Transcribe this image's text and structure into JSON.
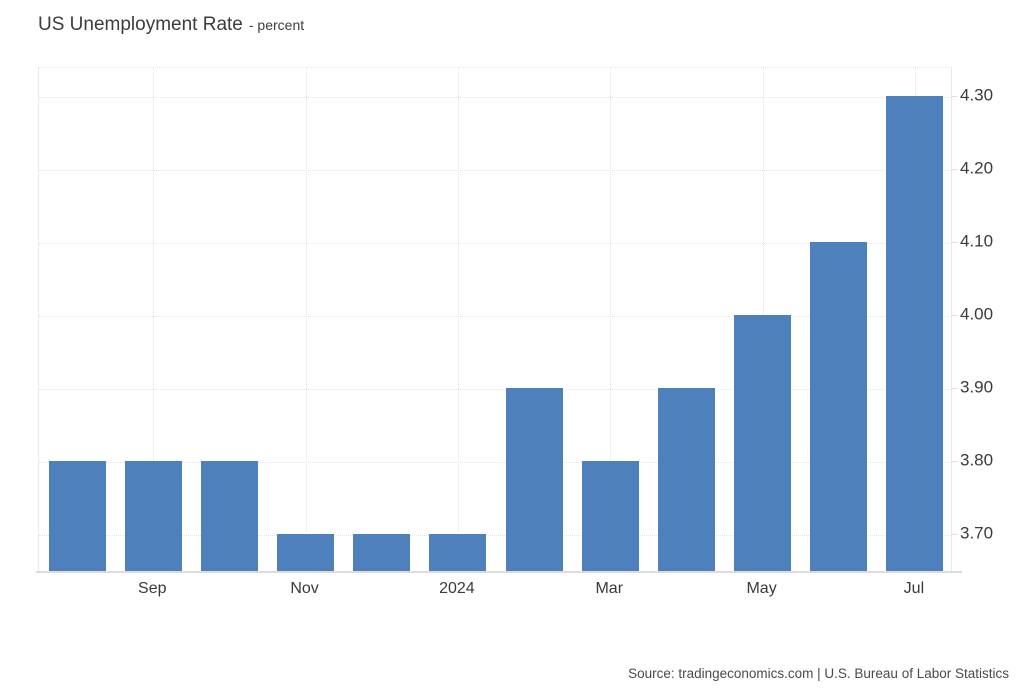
{
  "title": {
    "main": "US Unemployment Rate",
    "sub": "- percent"
  },
  "source": "Source: tradingeconomics.com | U.S. Bureau of Labor Statistics",
  "colors": {
    "bar": "#4e80bc",
    "grid": "#e4e4e4",
    "axis": "#dcdcdc",
    "title_text": "#3c3c3c",
    "tick_text": "#3a3a3a",
    "source_text": "#4a4a4a",
    "background": "#ffffff"
  },
  "chart_data": {
    "type": "bar",
    "title": "US Unemployment Rate",
    "subtitle": "percent",
    "categories": [
      "",
      "Sep",
      "",
      "Nov",
      "",
      "2024",
      "",
      "Mar",
      "",
      "May",
      "",
      "Jul"
    ],
    "values": [
      3.8,
      3.8,
      3.8,
      3.7,
      3.7,
      3.7,
      3.9,
      3.8,
      3.9,
      4.0,
      4.1,
      4.3
    ],
    "y_ticks": [
      3.7,
      3.8,
      3.9,
      4.0,
      4.1,
      4.2,
      4.3
    ],
    "y_tick_labels": [
      "3.70",
      "3.80",
      "3.90",
      "4.00",
      "4.10",
      "4.20",
      "4.30"
    ],
    "ylim": [
      3.65,
      4.34
    ],
    "xlabel": "",
    "ylabel": "",
    "grid": true,
    "grid_style": "dotted",
    "legend": "none",
    "y_axis_side": "right",
    "bar_color": "#4e80bc"
  }
}
